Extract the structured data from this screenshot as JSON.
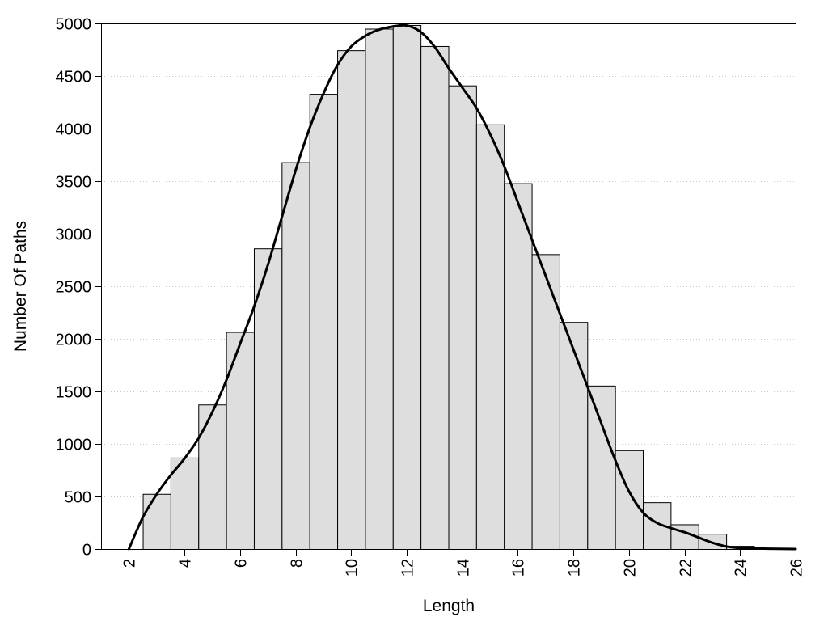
{
  "chart_data": {
    "type": "bar",
    "xlabel": "Length",
    "ylabel": "Number Of Paths",
    "xlim": [
      1,
      26
    ],
    "ylim": [
      0,
      5000
    ],
    "xticks": [
      2,
      4,
      6,
      8,
      10,
      12,
      14,
      16,
      18,
      20,
      22,
      24,
      26
    ],
    "yticks": [
      0,
      500,
      1000,
      1500,
      2000,
      2500,
      3000,
      3500,
      4000,
      4500,
      5000
    ],
    "grid": "horizontal dotted",
    "bin_width": 1,
    "bins": [
      {
        "x": 3,
        "value": 525
      },
      {
        "x": 4,
        "value": 870
      },
      {
        "x": 5,
        "value": 1375
      },
      {
        "x": 6,
        "value": 2065
      },
      {
        "x": 7,
        "value": 2860
      },
      {
        "x": 8,
        "value": 3680
      },
      {
        "x": 9,
        "value": 4330
      },
      {
        "x": 10,
        "value": 4745
      },
      {
        "x": 11,
        "value": 4950
      },
      {
        "x": 12,
        "value": 4985
      },
      {
        "x": 13,
        "value": 4785
      },
      {
        "x": 14,
        "value": 4410
      },
      {
        "x": 15,
        "value": 4040
      },
      {
        "x": 16,
        "value": 3480
      },
      {
        "x": 17,
        "value": 2805
      },
      {
        "x": 18,
        "value": 2160
      },
      {
        "x": 19,
        "value": 1555
      },
      {
        "x": 20,
        "value": 940
      },
      {
        "x": 21,
        "value": 445
      },
      {
        "x": 22,
        "value": 235
      },
      {
        "x": 23,
        "value": 145
      },
      {
        "x": 24,
        "value": 30
      },
      {
        "x": 25,
        "value": 10
      }
    ],
    "curve": [
      [
        2,
        0
      ],
      [
        2.5,
        300
      ],
      [
        3,
        520
      ],
      [
        3.5,
        700
      ],
      [
        4,
        860
      ],
      [
        4.5,
        1050
      ],
      [
        5,
        1300
      ],
      [
        5.5,
        1600
      ],
      [
        6,
        1950
      ],
      [
        6.5,
        2300
      ],
      [
        7,
        2700
      ],
      [
        7.5,
        3150
      ],
      [
        8,
        3600
      ],
      [
        8.5,
        4000
      ],
      [
        9,
        4330
      ],
      [
        9.5,
        4600
      ],
      [
        10,
        4780
      ],
      [
        10.5,
        4880
      ],
      [
        11,
        4940
      ],
      [
        11.5,
        4970
      ],
      [
        12,
        4980
      ],
      [
        12.5,
        4920
      ],
      [
        13,
        4780
      ],
      [
        13.5,
        4580
      ],
      [
        14,
        4390
      ],
      [
        14.5,
        4200
      ],
      [
        15,
        3950
      ],
      [
        15.5,
        3650
      ],
      [
        16,
        3300
      ],
      [
        16.5,
        2950
      ],
      [
        17,
        2600
      ],
      [
        17.5,
        2250
      ],
      [
        18,
        1900
      ],
      [
        18.5,
        1550
      ],
      [
        19,
        1200
      ],
      [
        19.5,
        850
      ],
      [
        20,
        550
      ],
      [
        20.5,
        350
      ],
      [
        21,
        250
      ],
      [
        21.5,
        200
      ],
      [
        22,
        160
      ],
      [
        22.5,
        110
      ],
      [
        23,
        60
      ],
      [
        23.5,
        25
      ],
      [
        24,
        10
      ],
      [
        25,
        3
      ],
      [
        26,
        0
      ]
    ]
  }
}
